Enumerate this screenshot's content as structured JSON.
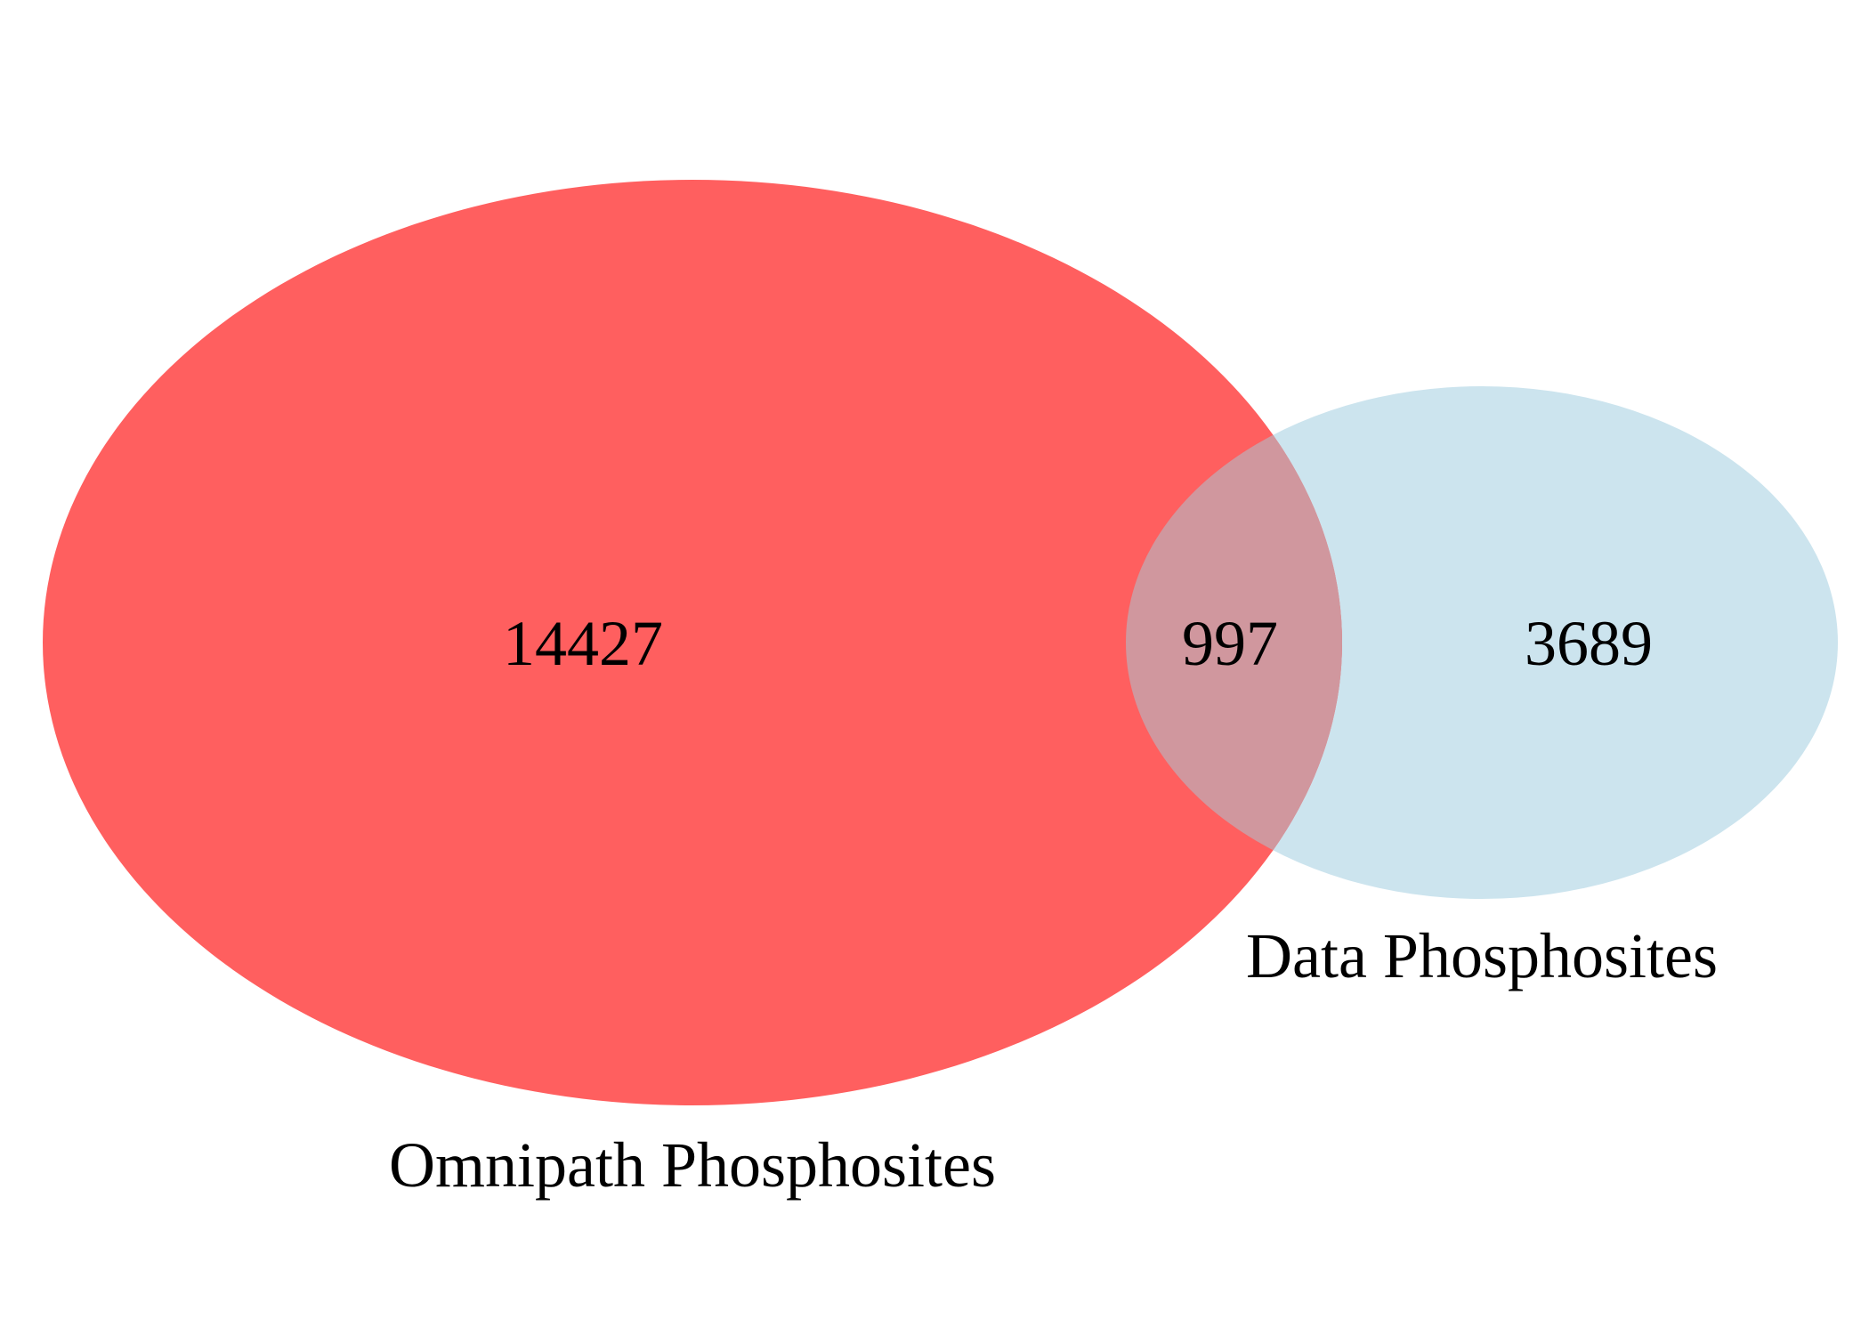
{
  "diagram": {
    "type": "venn",
    "sets": [
      {
        "id": "omnipath",
        "label": "Omnipath Phosphosites",
        "only_count": "14427",
        "color": "#ff5f5f"
      },
      {
        "id": "data",
        "label": "Data Phosphosites",
        "only_count": "3689",
        "color": "#cce4ee"
      }
    ],
    "intersection": {
      "count": "997",
      "color": "#d0979e"
    }
  }
}
